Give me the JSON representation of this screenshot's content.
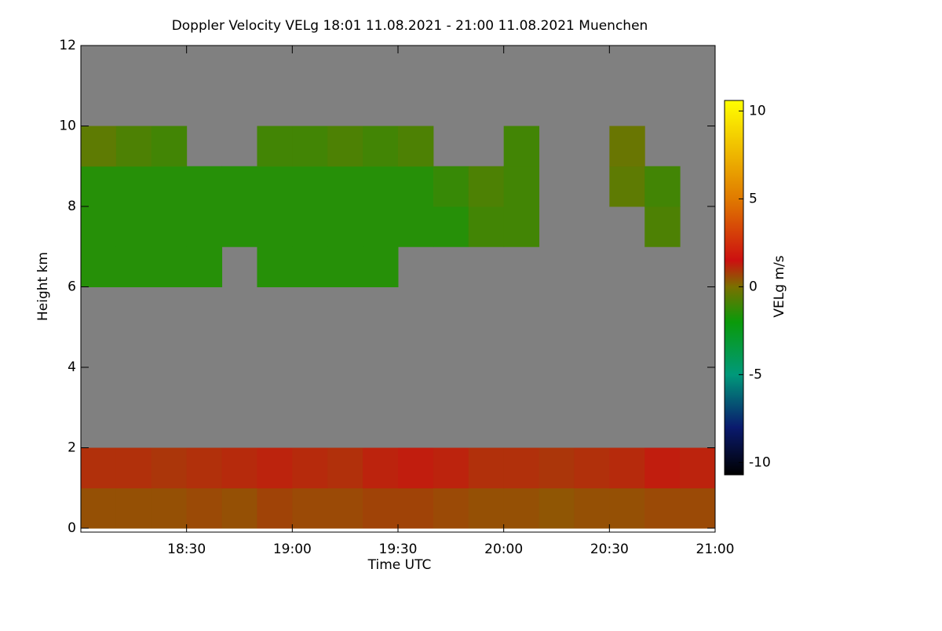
{
  "chart_data": {
    "type": "heatmap",
    "title": "Doppler Velocity VELg   18:01 11.08.2021 - 21:00 11.08.2021 Muenchen",
    "x_label": "Time UTC",
    "y_label": "Height km",
    "colorbar_label": "VELg m/s",
    "x": [
      0,
      10,
      20,
      30,
      40,
      50,
      60,
      70,
      80,
      90,
      100,
      110,
      120,
      130,
      140,
      150,
      160,
      170
    ],
    "y": [
      0,
      1,
      2,
      3,
      4,
      5,
      6,
      7,
      8,
      9,
      10,
      11
    ],
    "z": [
      [
        0.5,
        0.5,
        0.5,
        0.6,
        0.5,
        0.7,
        0.6,
        0.6,
        0.7,
        0.7,
        0.6,
        0.5,
        0.5,
        0.4,
        0.5,
        0.5,
        0.6,
        0.6
      ],
      [
        1.0,
        1.0,
        0.9,
        1.0,
        1.1,
        1.2,
        1.1,
        1.0,
        1.2,
        1.3,
        1.2,
        1.0,
        1.0,
        0.9,
        1.0,
        1.1,
        1.3,
        1.2
      ],
      [
        null,
        null,
        null,
        null,
        null,
        null,
        null,
        null,
        null,
        null,
        null,
        null,
        null,
        null,
        null,
        null,
        null,
        null
      ],
      [
        null,
        null,
        null,
        null,
        null,
        null,
        null,
        null,
        null,
        null,
        null,
        null,
        null,
        null,
        null,
        null,
        null,
        null
      ],
      [
        null,
        null,
        null,
        null,
        null,
        null,
        null,
        null,
        null,
        null,
        null,
        null,
        null,
        null,
        null,
        null,
        null,
        null
      ],
      [
        null,
        null,
        null,
        null,
        null,
        null,
        null,
        null,
        null,
        null,
        null,
        null,
        null,
        null,
        null,
        null,
        null,
        null
      ],
      [
        -1.5,
        -1.5,
        -1.5,
        -1.5,
        null,
        -1.5,
        -1.5,
        -1.5,
        -1.5,
        null,
        null,
        null,
        null,
        null,
        null,
        null,
        null,
        null
      ],
      [
        -1.5,
        -1.5,
        -1.5,
        -1.5,
        -1.5,
        -1.5,
        -1.5,
        -1.5,
        -1.5,
        -1.5,
        -1.5,
        -1.0,
        -1.0,
        null,
        null,
        null,
        -0.8,
        null
      ],
      [
        -1.5,
        -1.5,
        -1.5,
        -1.5,
        -1.5,
        -1.5,
        -1.5,
        -1.5,
        -1.5,
        -1.5,
        -1.2,
        -0.8,
        -1.0,
        null,
        null,
        -0.5,
        -1.0,
        null
      ],
      [
        -0.5,
        -0.8,
        -1.0,
        null,
        null,
        -1.0,
        -1.0,
        -0.8,
        -1.0,
        -0.8,
        null,
        null,
        -1.0,
        null,
        null,
        -0.3,
        null,
        null
      ],
      [
        null,
        null,
        null,
        null,
        null,
        null,
        null,
        null,
        null,
        null,
        null,
        null,
        null,
        null,
        null,
        null,
        null,
        null
      ],
      [
        null,
        null,
        null,
        null,
        null,
        null,
        null,
        null,
        null,
        null,
        null,
        null,
        null,
        null,
        null,
        null,
        null,
        null
      ]
    ],
    "cell_width": 10,
    "cell_height": 1,
    "xlim": [
      0,
      180
    ],
    "xticks": [
      {
        "value": 30,
        "label": "18:30"
      },
      {
        "value": 60,
        "label": "19:00"
      },
      {
        "value": 90,
        "label": "19:30"
      },
      {
        "value": 120,
        "label": "20:00"
      },
      {
        "value": 150,
        "label": "20:30"
      },
      {
        "value": 180,
        "label": "21:00"
      }
    ],
    "ylim": [
      0,
      12
    ],
    "yticks": [
      0,
      2,
      4,
      6,
      8,
      10,
      12
    ],
    "zlim": [
      -10.7,
      10.6
    ],
    "zticks": [
      -10,
      -5,
      0,
      5,
      10
    ],
    "colorscale": [
      [
        -10.7,
        "#000000"
      ],
      [
        -8,
        "#0a1a6e"
      ],
      [
        -5,
        "#00997a"
      ],
      [
        -2,
        "#0a9a0a"
      ],
      [
        0,
        "#7a7000"
      ],
      [
        1.5,
        "#cc1010"
      ],
      [
        5,
        "#e07a00"
      ],
      [
        10.6,
        "#ffff00"
      ]
    ],
    "missing_color": "#808080"
  }
}
